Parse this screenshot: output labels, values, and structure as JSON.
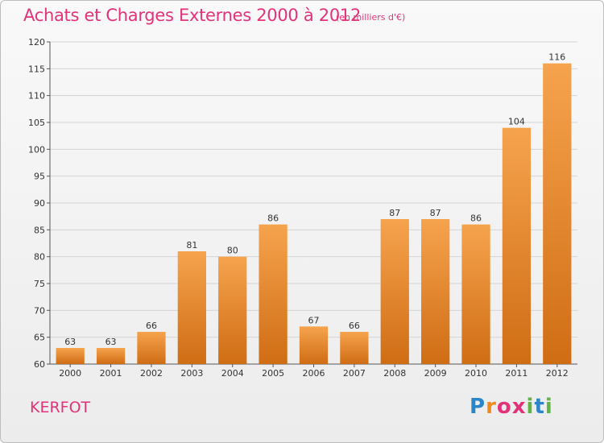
{
  "title": "Achats et Charges Externes 2000 à 2012",
  "subtitle": "(en milliers d'€)",
  "commune": "KERFOT",
  "brand": {
    "letters": [
      "P",
      "r",
      "o",
      "x",
      "i",
      "t",
      "i"
    ],
    "colors": [
      "#2a86c8",
      "#f08a1d",
      "#e2337a",
      "#e2337a",
      "#62b346",
      "#2a86c8",
      "#62b346"
    ]
  },
  "colors": {
    "accent": "#e2337a",
    "bar_top": "#f6a34e",
    "bar_bottom": "#cf6d14"
  },
  "chart_data": {
    "type": "bar",
    "categories": [
      "2000",
      "2001",
      "2002",
      "2003",
      "2004",
      "2005",
      "2006",
      "2007",
      "2008",
      "2009",
      "2010",
      "2011",
      "2012"
    ],
    "values": [
      63,
      63,
      66,
      81,
      80,
      86,
      67,
      66,
      87,
      87,
      86,
      104,
      116
    ],
    "ylim": [
      60,
      120
    ],
    "yticks": [
      60,
      65,
      70,
      75,
      80,
      85,
      90,
      95,
      100,
      105,
      110,
      115,
      120
    ],
    "grid": true,
    "data_labels": true
  }
}
